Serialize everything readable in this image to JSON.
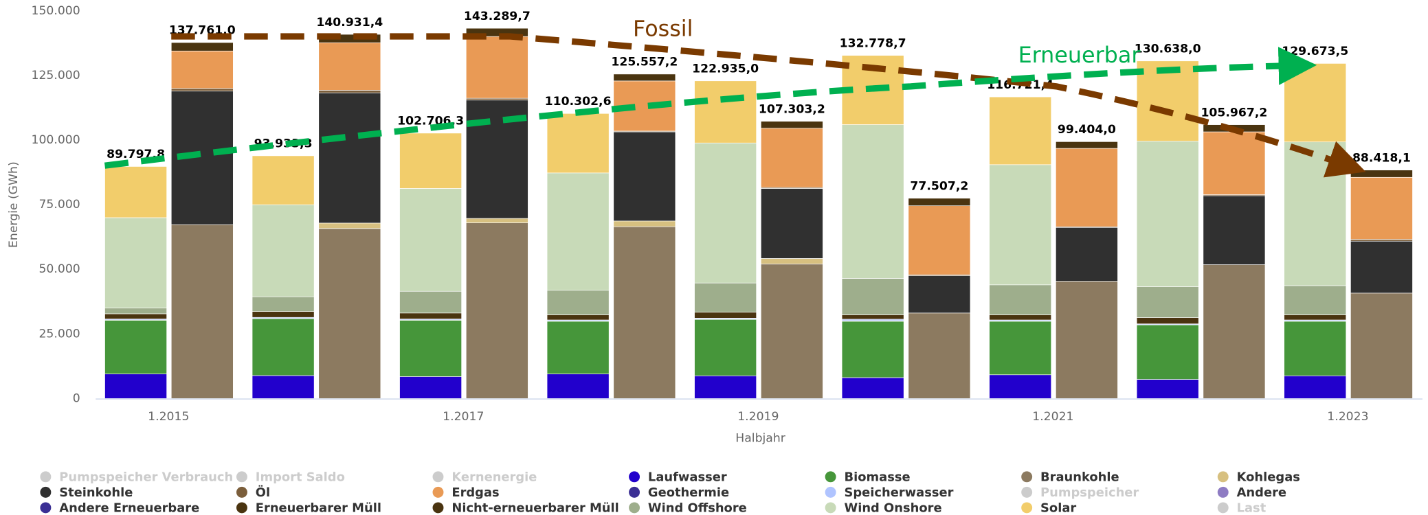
{
  "chart_data": {
    "type": "stacked_bar",
    "x_label": "Halbjahr",
    "y_label": "Energie (GWh)",
    "categories": [
      "1.2015",
      null,
      "1.2017",
      null,
      "1.2019",
      null,
      "1.2021",
      null,
      "1.2023"
    ],
    "ylim": [
      0,
      150000
    ],
    "yticks": [
      0,
      {
        "value": 25000,
        "label": "25.000"
      },
      {
        "value": 50000,
        "label": "50.000"
      },
      {
        "value": 75000,
        "label": "75.000"
      },
      {
        "value": 100000,
        "label": "100.000"
      },
      {
        "value": 125000,
        "label": "125.000"
      },
      {
        "value": 150000,
        "label": "150.000"
      }
    ],
    "grid": false,
    "legend": "bottom",
    "annotations": [
      "Fossil",
      "Erneuerbar"
    ],
    "series": [
      {
        "name": "Pumpspeicher Verbrauch",
        "color": "#cccccc",
        "visible": false,
        "values": [
          null,
          null,
          null,
          null,
          null,
          null,
          null,
          null,
          null
        ]
      },
      {
        "name": "Import Saldo",
        "color": "#cccccc",
        "visible": false,
        "values": [
          null,
          null,
          null,
          null,
          null,
          null,
          null,
          null,
          null
        ]
      },
      {
        "name": "Kernenergie",
        "color": "#cccccc",
        "visible": false,
        "values": [
          null,
          null,
          null,
          null,
          null,
          null,
          null,
          null,
          null
        ]
      },
      {
        "name": "Laufwasser",
        "color": "#2200cc",
        "stack": 0,
        "values": [
          9500,
          8900,
          8500,
          9500,
          8800,
          8100,
          9200,
          7400,
          8800
        ]
      },
      {
        "name": "Biomasse",
        "color": "#46963a",
        "stack": 0,
        "values": [
          20800,
          22000,
          21800,
          20400,
          21800,
          21800,
          20700,
          21100,
          21100
        ]
      },
      {
        "name": "Braunkohle",
        "color": "#8c7a60",
        "stack": 1,
        "values": [
          67300,
          65800,
          68000,
          66500,
          52100,
          33100,
          45400,
          51800,
          40800
        ]
      },
      {
        "name": "Kohlegas",
        "color": "#d7c080",
        "stack": 1,
        "values": [
          0,
          2100,
          1700,
          2200,
          2100,
          0,
          0,
          0,
          0
        ]
      },
      {
        "name": "Steinkohle",
        "color": "#303030",
        "stack": 1,
        "values": [
          51700,
          50400,
          45800,
          34500,
          27100,
          14400,
          20800,
          26700,
          20100
        ]
      },
      {
        "name": "Öl",
        "color": "#7b5e3b",
        "stack": 1,
        "values": [
          1000,
          1000,
          700,
          300,
          400,
          400,
          300,
          400,
          700
        ]
      },
      {
        "name": "Erdgas",
        "color": "#e99a55",
        "stack": 1,
        "values": [
          14500,
          18400,
          23900,
          19400,
          22900,
          26700,
          30300,
          24300,
          24000
        ]
      },
      {
        "name": "Geothermie",
        "color": "#3b2f94",
        "stack": 0,
        "values": [
          100,
          100,
          100,
          100,
          100,
          200,
          100,
          100,
          100
        ]
      },
      {
        "name": "Speicherwasser",
        "color": "#b0c4ff",
        "stack": 0,
        "values": [
          400,
          400,
          400,
          400,
          400,
          600,
          400,
          300,
          400
        ]
      },
      {
        "name": "Pumpspeicher",
        "color": "#cccccc",
        "visible": false,
        "values": [
          null,
          null,
          null,
          null,
          null,
          null,
          null,
          null,
          null
        ]
      },
      {
        "name": "Andere",
        "color": "#8e7cc3",
        "stack": 1,
        "values": [
          0,
          0,
          0,
          0,
          0,
          0,
          0,
          0,
          0
        ]
      },
      {
        "name": "Andere Erneuerbare",
        "color": "#3b2f94",
        "stack": 0,
        "values": [
          0,
          0,
          0,
          0,
          0,
          0,
          0,
          0,
          0
        ]
      },
      {
        "name": "Erneuerbarer Müll",
        "color": "#4a3410",
        "stack": 0,
        "values": [
          2000,
          2300,
          2300,
          2000,
          2300,
          1700,
          2000,
          2400,
          2000
        ]
      },
      {
        "name": "Nicht-erneuerbarer Müll",
        "color": "#4a3410",
        "stack": 1,
        "values": [
          3261,
          3231.4,
          3189.7,
          2657.2,
          2703.2,
          2907.2,
          2604,
          2767.2,
          2818.1
        ]
      },
      {
        "name": "Wind Offshore",
        "color": "#9eae8c",
        "stack": 0,
        "values": [
          2200,
          5700,
          8400,
          9500,
          11300,
          14100,
          11600,
          12000,
          11300
        ]
      },
      {
        "name": "Wind Onshore",
        "color": "#c8dab8",
        "stack": 0,
        "values": [
          35000,
          35600,
          39800,
          45400,
          54200,
          59500,
          46500,
          56300,
          55600
        ]
      },
      {
        "name": "Solar",
        "color": "#f2cd6b",
        "stack": 0,
        "values": [
          19797.8,
          18933.3,
          21406.3,
          23002.6,
          24035,
          26778.7,
          26221.4,
          31038,
          30373.5
        ]
      },
      {
        "name": "Last",
        "color": "#cccccc",
        "visible": false,
        "values": [
          null,
          null,
          null,
          null,
          null,
          null,
          null,
          null,
          null
        ]
      }
    ],
    "totals": [
      {
        "values": [
          89797.8,
          93933.3,
          102706.3,
          110302.6,
          122935.0,
          132778.7,
          116721.4,
          130638.0,
          129673.5
        ],
        "value_labels": [
          "89.797,8",
          "93.933,3",
          "102.706,3",
          "110.302,6",
          "122.935,0",
          "132.778,7",
          "116.721,4",
          "130.638,0",
          "129.673,5"
        ]
      },
      {
        "values": [
          137761.0,
          140931.4,
          143289.7,
          125557.2,
          107303.2,
          77507.2,
          99404.0,
          105967.2,
          88418.1
        ],
        "value_labels": [
          "137.761,0",
          "140.931,4",
          "143.289,7",
          "125.557,2",
          "107.303,2",
          "77.507,2",
          "99.404,0",
          "105.967,2",
          "88.418,1"
        ]
      }
    ]
  }
}
